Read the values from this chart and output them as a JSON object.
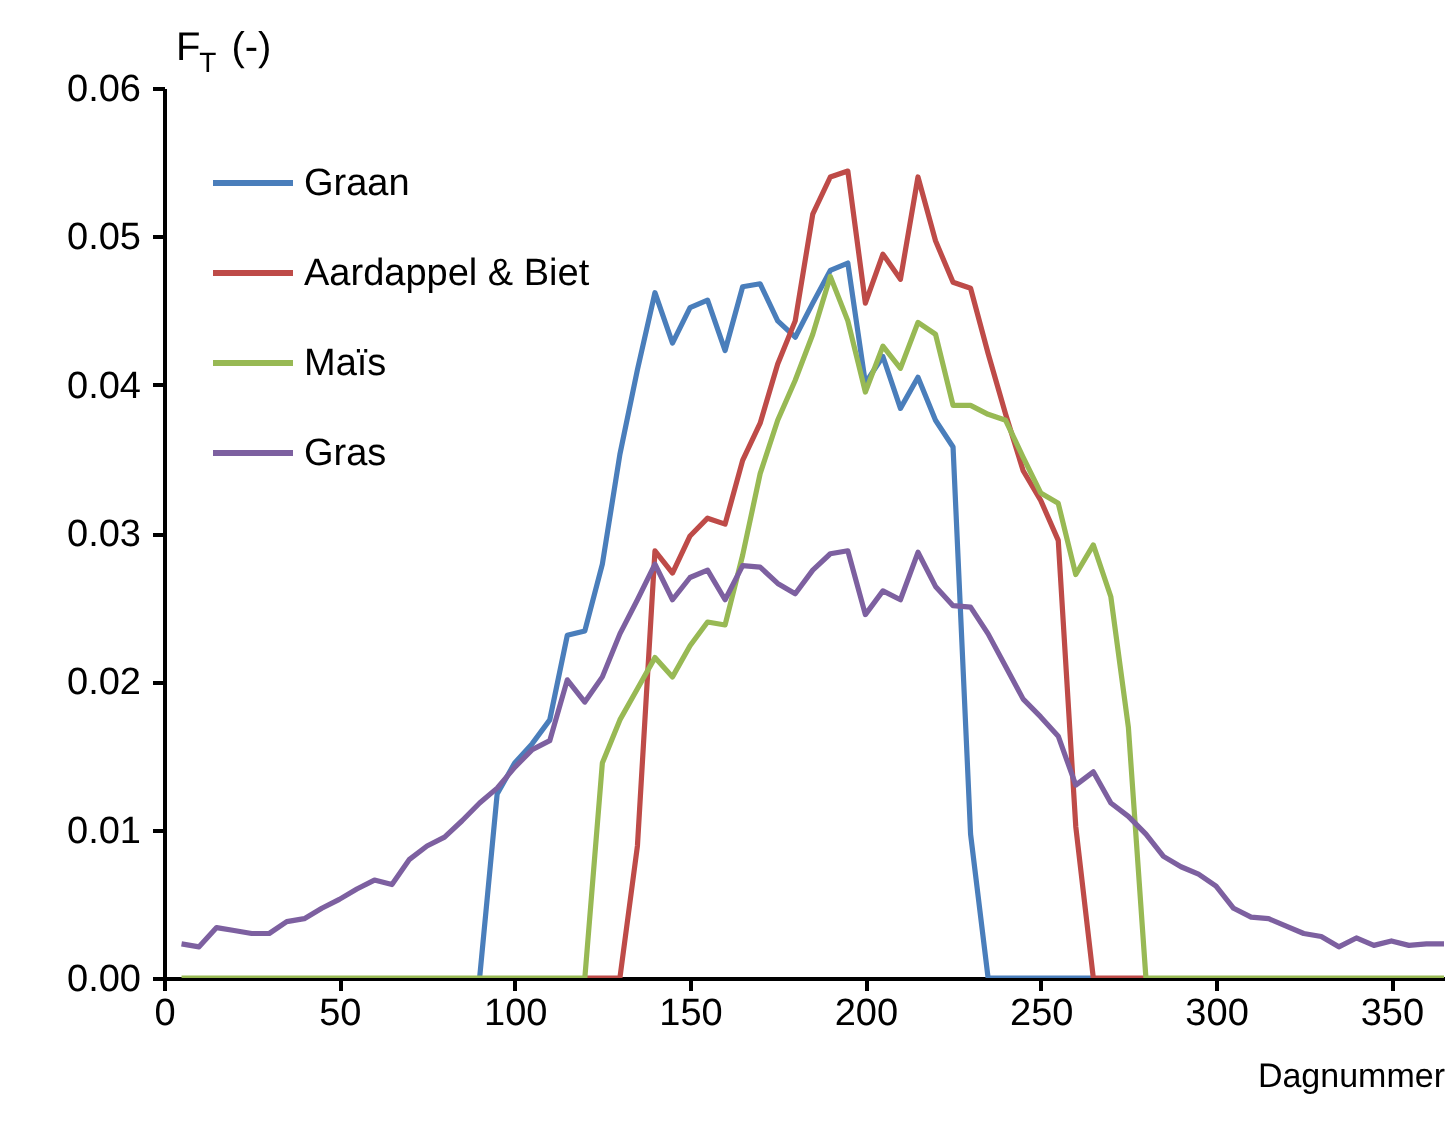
{
  "chart_data": {
    "type": "line",
    "ylabel": "F$_{T}$ (-)",
    "xlabel": "Dagnummer",
    "x": [
      5,
      10,
      15,
      20,
      25,
      30,
      35,
      40,
      45,
      50,
      55,
      60,
      65,
      70,
      75,
      80,
      85,
      90,
      95,
      100,
      105,
      110,
      115,
      120,
      125,
      130,
      135,
      140,
      145,
      150,
      155,
      160,
      165,
      170,
      175,
      180,
      185,
      190,
      195,
      200,
      205,
      210,
      215,
      220,
      225,
      230,
      235,
      240,
      245,
      250,
      255,
      260,
      265,
      270,
      275,
      280,
      285,
      290,
      295,
      300,
      305,
      310,
      315,
      320,
      325,
      330,
      335,
      340,
      345,
      350,
      355,
      360,
      365
    ],
    "series": [
      {
        "name": "Graan",
        "color": "#4a7ebb",
        "values": [
          null,
          null,
          null,
          null,
          null,
          null,
          null,
          null,
          null,
          null,
          null,
          null,
          null,
          null,
          null,
          null,
          null,
          0,
          0.0124,
          0.0145,
          0.0158,
          0.0174,
          0.0231,
          0.0234,
          0.0279,
          0.0353,
          0.041,
          0.0462,
          0.0428,
          0.0452,
          0.0457,
          0.0423,
          0.0466,
          0.0468,
          0.0443,
          0.0432,
          0.0455,
          0.0477,
          0.0482,
          0.0401,
          0.0419,
          0.0384,
          0.0405,
          0.0376,
          0.0358,
          0.0097,
          0,
          0,
          0,
          0,
          0,
          0,
          0,
          null,
          null,
          null,
          null,
          null,
          null,
          null,
          null,
          null,
          null,
          null,
          null,
          null,
          null,
          null,
          null,
          null,
          null,
          null,
          null
        ]
      },
      {
        "name": "Aardappel & Biet",
        "color": "#be4b48",
        "values": [
          null,
          null,
          null,
          null,
          null,
          null,
          null,
          null,
          null,
          null,
          null,
          null,
          null,
          null,
          null,
          null,
          null,
          null,
          null,
          null,
          null,
          null,
          null,
          0,
          0,
          0,
          0.0089,
          0.0288,
          0.0273,
          0.0298,
          0.031,
          0.0306,
          0.0349,
          0.0374,
          0.0414,
          0.0443,
          0.0515,
          0.054,
          0.0544,
          0.0455,
          0.0488,
          0.0471,
          0.054,
          0.0497,
          0.0469,
          0.0465,
          0.0421,
          0.038,
          0.0342,
          0.0322,
          0.0295,
          0.0102,
          0,
          0,
          0,
          0,
          null,
          null,
          null,
          null,
          null,
          null,
          null,
          null,
          null,
          null,
          null,
          null,
          null,
          null,
          null,
          null,
          null
        ]
      },
      {
        "name": "Maïs",
        "color": "#98b954",
        "values": [
          0,
          0,
          0,
          0,
          0,
          0,
          0,
          0,
          0,
          0,
          0,
          0,
          0,
          0,
          0,
          0,
          0,
          0,
          0,
          0,
          0,
          0,
          0,
          0,
          0.0145,
          0.0174,
          0.0195,
          0.0216,
          0.0203,
          0.0224,
          0.024,
          0.0238,
          0.0285,
          0.034,
          0.0376,
          0.0403,
          0.0434,
          0.0473,
          0.0443,
          0.0395,
          0.0426,
          0.0411,
          0.0442,
          0.0434,
          0.0386,
          0.0386,
          0.038,
          0.0376,
          0.0351,
          0.0327,
          0.032,
          0.0272,
          0.0292,
          0.0257,
          0.0169,
          0,
          0,
          0,
          0,
          0,
          0,
          0,
          0,
          0,
          0,
          0,
          0,
          0,
          0,
          0,
          0,
          0,
          0
        ]
      },
      {
        "name": "Gras",
        "color": "#7d60a0",
        "values": [
          0.0023,
          0.0021,
          0.0034,
          0.0032,
          0.003,
          0.003,
          0.0038,
          0.004,
          0.0047,
          0.0053,
          0.006,
          0.0066,
          0.0063,
          0.008,
          0.0089,
          0.0095,
          0.0106,
          0.0118,
          0.0128,
          0.0142,
          0.0154,
          0.016,
          0.0201,
          0.0186,
          0.0203,
          0.0232,
          0.0255,
          0.0279,
          0.0255,
          0.027,
          0.0275,
          0.0255,
          0.0278,
          0.0277,
          0.0266,
          0.0259,
          0.0275,
          0.0286,
          0.0288,
          0.0245,
          0.0261,
          0.0255,
          0.0287,
          0.0264,
          0.0251,
          0.025,
          0.0232,
          0.021,
          0.0188,
          0.0176,
          0.0163,
          0.013,
          0.0139,
          0.0118,
          0.0109,
          0.0097,
          0.0082,
          0.0075,
          0.007,
          0.0062,
          0.0047,
          0.0041,
          0.004,
          0.0035,
          0.003,
          0.0028,
          0.0021,
          0.0027,
          0.0022,
          0.0025,
          0.0022,
          0.0023,
          0.0023
        ]
      }
    ],
    "xlim": [
      0,
      365
    ],
    "xticks": [
      0,
      50,
      100,
      150,
      200,
      250,
      300,
      350
    ],
    "ylim": [
      0,
      0.06
    ],
    "yticks": [
      {
        "value": 0,
        "label": "0.00"
      },
      0.01,
      0.02,
      0.03,
      0.04,
      0.05,
      0.06
    ],
    "grid": false,
    "legend": "top left",
    "marker": "none",
    "line_style": "solid"
  }
}
